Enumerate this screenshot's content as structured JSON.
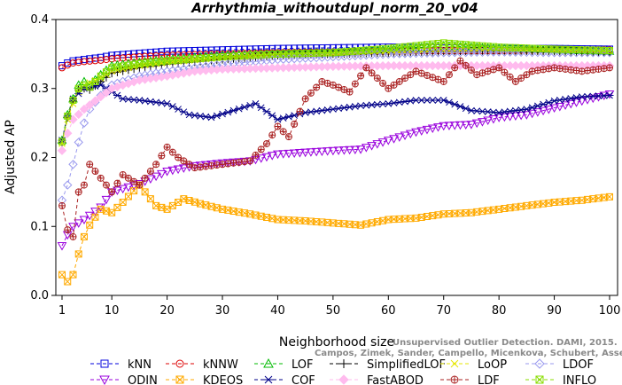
{
  "chart_data": {
    "type": "line",
    "title": "Arrhythmia_withoutdupl_norm_20_v04",
    "xlabel": "Neighborhood size",
    "ylabel": "Adjusted AP",
    "xlim": [
      1,
      100
    ],
    "ylim": [
      0.0,
      0.4
    ],
    "x_ticks": [
      "1",
      "10",
      "20",
      "30",
      "40",
      "50",
      "60",
      "70",
      "80",
      "90",
      "100"
    ],
    "y_ticks": [
      "0.0",
      "0.1",
      "0.2",
      "0.3",
      "0.4"
    ],
    "grid": false,
    "legend_position": "bottom",
    "watermark": {
      "line1": "Unsupervised Outlier Detection. DAMI, 2015.",
      "line2": "Campos, Zimek, Sander, Campello, Micenkova, Schubert, Assent, Houle"
    },
    "series": [
      {
        "name": "kNN",
        "color": "#0000dd",
        "marker": "square",
        "points": [
          [
            1,
            0.333
          ],
          [
            2,
            0.337
          ],
          [
            3,
            0.34
          ],
          [
            5,
            0.342
          ],
          [
            8,
            0.345
          ],
          [
            10,
            0.348
          ],
          [
            15,
            0.351
          ],
          [
            20,
            0.354
          ],
          [
            30,
            0.356
          ],
          [
            40,
            0.358
          ],
          [
            50,
            0.359
          ],
          [
            60,
            0.36
          ],
          [
            70,
            0.359
          ],
          [
            80,
            0.358
          ],
          [
            90,
            0.358
          ],
          [
            100,
            0.357
          ]
        ]
      },
      {
        "name": "kNNW",
        "color": "#dd0000",
        "marker": "circle",
        "points": [
          [
            1,
            0.33
          ],
          [
            2,
            0.334
          ],
          [
            3,
            0.337
          ],
          [
            5,
            0.339
          ],
          [
            8,
            0.341
          ],
          [
            10,
            0.343
          ],
          [
            15,
            0.346
          ],
          [
            20,
            0.348
          ],
          [
            30,
            0.35
          ],
          [
            40,
            0.352
          ],
          [
            50,
            0.353
          ],
          [
            60,
            0.354
          ],
          [
            70,
            0.355
          ],
          [
            80,
            0.355
          ],
          [
            90,
            0.356
          ],
          [
            100,
            0.356
          ]
        ]
      },
      {
        "name": "LOF",
        "color": "#00bb00",
        "marker": "triangle-up",
        "points": [
          [
            1,
            0.225
          ],
          [
            2,
            0.262
          ],
          [
            3,
            0.285
          ],
          [
            4,
            0.305
          ],
          [
            5,
            0.31
          ],
          [
            6,
            0.305
          ],
          [
            8,
            0.32
          ],
          [
            10,
            0.333
          ],
          [
            15,
            0.338
          ],
          [
            20,
            0.342
          ],
          [
            30,
            0.348
          ],
          [
            40,
            0.35
          ],
          [
            50,
            0.352
          ],
          [
            60,
            0.356
          ],
          [
            70,
            0.362
          ],
          [
            80,
            0.358
          ],
          [
            90,
            0.356
          ],
          [
            100,
            0.354
          ]
        ]
      },
      {
        "name": "SimplifiedLOF",
        "color": "#000000",
        "marker": "plus",
        "points": [
          [
            1,
            0.222
          ],
          [
            2,
            0.258
          ],
          [
            3,
            0.282
          ],
          [
            4,
            0.298
          ],
          [
            5,
            0.3
          ],
          [
            6,
            0.298
          ],
          [
            8,
            0.31
          ],
          [
            10,
            0.322
          ],
          [
            15,
            0.33
          ],
          [
            20,
            0.335
          ],
          [
            30,
            0.342
          ],
          [
            40,
            0.348
          ],
          [
            50,
            0.35
          ],
          [
            60,
            0.352
          ],
          [
            70,
            0.354
          ],
          [
            80,
            0.355
          ],
          [
            90,
            0.354
          ],
          [
            100,
            0.353
          ]
        ]
      },
      {
        "name": "LoOP",
        "color": "#e6e600",
        "marker": "cross",
        "points": [
          [
            1,
            0.22
          ],
          [
            2,
            0.255
          ],
          [
            3,
            0.278
          ],
          [
            4,
            0.295
          ],
          [
            5,
            0.305
          ],
          [
            8,
            0.315
          ],
          [
            10,
            0.325
          ],
          [
            15,
            0.333
          ],
          [
            20,
            0.338
          ],
          [
            30,
            0.345
          ],
          [
            40,
            0.348
          ],
          [
            50,
            0.35
          ],
          [
            60,
            0.352
          ],
          [
            70,
            0.355
          ],
          [
            80,
            0.356
          ],
          [
            90,
            0.355
          ],
          [
            100,
            0.354
          ]
        ]
      },
      {
        "name": "LDOF",
        "color": "#9999ee",
        "marker": "diamond",
        "points": [
          [
            1,
            0.138
          ],
          [
            2,
            0.16
          ],
          [
            3,
            0.19
          ],
          [
            4,
            0.222
          ],
          [
            5,
            0.25
          ],
          [
            6,
            0.27
          ],
          [
            8,
            0.29
          ],
          [
            10,
            0.305
          ],
          [
            15,
            0.318
          ],
          [
            20,
            0.325
          ],
          [
            30,
            0.335
          ],
          [
            40,
            0.342
          ],
          [
            50,
            0.346
          ],
          [
            60,
            0.35
          ],
          [
            70,
            0.352
          ],
          [
            80,
            0.353
          ],
          [
            90,
            0.352
          ],
          [
            100,
            0.352
          ]
        ]
      },
      {
        "name": "ODIN",
        "color": "#9900dd",
        "marker": "triangle-down",
        "points": [
          [
            1,
            0.072
          ],
          [
            2,
            0.088
          ],
          [
            3,
            0.1
          ],
          [
            5,
            0.11
          ],
          [
            8,
            0.128
          ],
          [
            10,
            0.15
          ],
          [
            15,
            0.162
          ],
          [
            20,
            0.18
          ],
          [
            25,
            0.188
          ],
          [
            30,
            0.192
          ],
          [
            35,
            0.195
          ],
          [
            40,
            0.205
          ],
          [
            50,
            0.21
          ],
          [
            55,
            0.212
          ],
          [
            60,
            0.225
          ],
          [
            65,
            0.237
          ],
          [
            70,
            0.246
          ],
          [
            75,
            0.248
          ],
          [
            80,
            0.258
          ],
          [
            85,
            0.262
          ],
          [
            90,
            0.272
          ],
          [
            95,
            0.282
          ],
          [
            100,
            0.292
          ]
        ]
      },
      {
        "name": "KDEOS",
        "color": "#ffaa00",
        "marker": "hourglass",
        "points": [
          [
            1,
            0.03
          ],
          [
            2,
            0.02
          ],
          [
            3,
            0.03
          ],
          [
            4,
            0.06
          ],
          [
            5,
            0.085
          ],
          [
            6,
            0.102
          ],
          [
            8,
            0.125
          ],
          [
            10,
            0.12
          ],
          [
            12,
            0.135
          ],
          [
            15,
            0.16
          ],
          [
            18,
            0.13
          ],
          [
            20,
            0.125
          ],
          [
            23,
            0.14
          ],
          [
            26,
            0.133
          ],
          [
            30,
            0.125
          ],
          [
            35,
            0.118
          ],
          [
            40,
            0.11
          ],
          [
            45,
            0.108
          ],
          [
            50,
            0.105
          ],
          [
            55,
            0.102
          ],
          [
            60,
            0.11
          ],
          [
            65,
            0.112
          ],
          [
            70,
            0.118
          ],
          [
            75,
            0.12
          ],
          [
            80,
            0.125
          ],
          [
            85,
            0.13
          ],
          [
            90,
            0.135
          ],
          [
            95,
            0.138
          ],
          [
            100,
            0.143
          ]
        ]
      },
      {
        "name": "COF",
        "color": "#000088",
        "marker": "asterisk",
        "points": [
          [
            1,
            0.225
          ],
          [
            2,
            0.26
          ],
          [
            3,
            0.285
          ],
          [
            5,
            0.3
          ],
          [
            8,
            0.305
          ],
          [
            10,
            0.295
          ],
          [
            12,
            0.285
          ],
          [
            15,
            0.283
          ],
          [
            20,
            0.278
          ],
          [
            24,
            0.262
          ],
          [
            28,
            0.258
          ],
          [
            32,
            0.268
          ],
          [
            36,
            0.278
          ],
          [
            40,
            0.255
          ],
          [
            45,
            0.265
          ],
          [
            50,
            0.27
          ],
          [
            55,
            0.275
          ],
          [
            60,
            0.278
          ],
          [
            65,
            0.283
          ],
          [
            70,
            0.283
          ],
          [
            75,
            0.268
          ],
          [
            80,
            0.265
          ],
          [
            85,
            0.27
          ],
          [
            90,
            0.282
          ],
          [
            95,
            0.288
          ],
          [
            100,
            0.29
          ]
        ]
      },
      {
        "name": "FastABOD",
        "color": "#ffbbee",
        "marker": "diamond-filled",
        "points": [
          [
            1,
            0.21
          ],
          [
            2,
            0.235
          ],
          [
            3,
            0.255
          ],
          [
            5,
            0.27
          ],
          [
            8,
            0.288
          ],
          [
            10,
            0.3
          ],
          [
            15,
            0.312
          ],
          [
            20,
            0.318
          ],
          [
            25,
            0.325
          ],
          [
            30,
            0.328
          ],
          [
            40,
            0.33
          ],
          [
            50,
            0.332
          ],
          [
            60,
            0.333
          ],
          [
            70,
            0.333
          ],
          [
            80,
            0.333
          ],
          [
            90,
            0.333
          ],
          [
            100,
            0.333
          ]
        ]
      },
      {
        "name": "LDF",
        "color": "#aa2222",
        "marker": "circle-plus",
        "points": [
          [
            1,
            0.13
          ],
          [
            2,
            0.095
          ],
          [
            3,
            0.085
          ],
          [
            4,
            0.15
          ],
          [
            5,
            0.16
          ],
          [
            6,
            0.19
          ],
          [
            8,
            0.17
          ],
          [
            10,
            0.15
          ],
          [
            12,
            0.175
          ],
          [
            15,
            0.16
          ],
          [
            18,
            0.19
          ],
          [
            20,
            0.215
          ],
          [
            22,
            0.2
          ],
          [
            25,
            0.185
          ],
          [
            30,
            0.19
          ],
          [
            35,
            0.195
          ],
          [
            38,
            0.22
          ],
          [
            40,
            0.245
          ],
          [
            42,
            0.23
          ],
          [
            45,
            0.285
          ],
          [
            48,
            0.31
          ],
          [
            50,
            0.305
          ],
          [
            53,
            0.295
          ],
          [
            56,
            0.33
          ],
          [
            60,
            0.3
          ],
          [
            65,
            0.325
          ],
          [
            70,
            0.31
          ],
          [
            73,
            0.34
          ],
          [
            76,
            0.32
          ],
          [
            80,
            0.33
          ],
          [
            83,
            0.31
          ],
          [
            86,
            0.325
          ],
          [
            90,
            0.33
          ],
          [
            95,
            0.325
          ],
          [
            100,
            0.33
          ]
        ]
      },
      {
        "name": "INFLO",
        "color": "#88dd00",
        "marker": "square-x",
        "points": [
          [
            1,
            0.223
          ],
          [
            2,
            0.26
          ],
          [
            3,
            0.283
          ],
          [
            4,
            0.3
          ],
          [
            5,
            0.305
          ],
          [
            6,
            0.302
          ],
          [
            8,
            0.318
          ],
          [
            10,
            0.33
          ],
          [
            15,
            0.336
          ],
          [
            20,
            0.34
          ],
          [
            30,
            0.346
          ],
          [
            40,
            0.35
          ],
          [
            50,
            0.352
          ],
          [
            60,
            0.358
          ],
          [
            70,
            0.366
          ],
          [
            80,
            0.36
          ],
          [
            90,
            0.357
          ],
          [
            100,
            0.355
          ]
        ]
      }
    ]
  }
}
